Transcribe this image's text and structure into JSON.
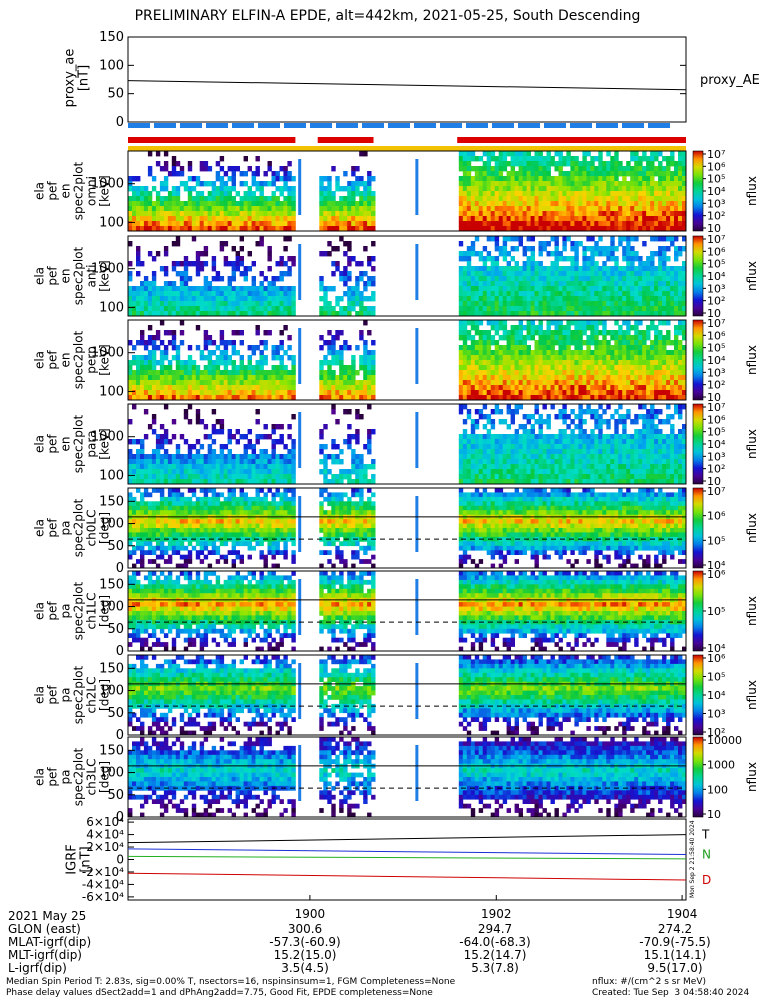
{
  "title": "PRELIMINARY ELFIN-A EPDE, alt=442km, 2021-05-25, South Descending",
  "colors": {
    "frame": "#000000",
    "red_bar": "#dd0000",
    "blue_bar": "#1e7ee6",
    "yellow_bar": "#f2c200",
    "igrf_t": "#000000",
    "igrf_n": "#1a2fd6",
    "igrf_nlabel": "#1e9e1e",
    "igrf_d": "#d00000",
    "igrf_green": "#20b020"
  },
  "chart_data": [
    {
      "type": "line",
      "name": "proxy_ae",
      "ylabel_lines": [
        "proxy_ae",
        "[nT]"
      ],
      "ylim": [
        0,
        150
      ],
      "yticks": [
        "0",
        "50",
        "100",
        "150"
      ],
      "series": [
        {
          "name": "proxy_AE",
          "x": [
            0,
            1
          ],
          "y": [
            73,
            57
          ]
        }
      ]
    },
    {
      "type": "heatmap",
      "name": "status_bars",
      "rows": [
        {
          "color": "blue_bar",
          "segments": [
            [
              0,
              1
            ]
          ],
          "dashed": true
        },
        {
          "color": "red_bar",
          "segments": [
            [
              0,
              0.3
            ],
            [
              0.34,
              0.44
            ],
            [
              0.59,
              1.0
            ]
          ]
        },
        {
          "color": "yellow_bar",
          "segments": [
            [
              0,
              1
            ]
          ]
        }
      ]
    },
    {
      "type": "heatmap",
      "ylabel_lines": [
        "ela",
        "pef",
        "en",
        "spec2plot",
        "omni",
        "[keV]"
      ],
      "yticks": [
        "100",
        "1000"
      ],
      "ylog": true,
      "ylim": [
        60,
        7000
      ],
      "colorbar": {
        "label": "nflux",
        "ticks": [
          "10",
          "10²",
          "10³",
          "10⁴",
          "10⁵",
          "10⁶",
          "10⁷"
        ],
        "log_range": [
          1,
          7
        ]
      }
    },
    {
      "type": "heatmap",
      "ylabel_lines": [
        "ela",
        "pef",
        "en",
        "spec2plot",
        "anti",
        "[keV]"
      ],
      "yticks": [
        "100",
        "1000"
      ],
      "ylog": true,
      "ylim": [
        60,
        7000
      ],
      "colorbar": {
        "label": "nflux",
        "ticks": [
          "10",
          "10²",
          "10³",
          "10⁴",
          "10⁵",
          "10⁶",
          "10⁷"
        ],
        "log_range": [
          1,
          7
        ]
      }
    },
    {
      "type": "heatmap",
      "ylabel_lines": [
        "ela",
        "pef",
        "en",
        "spec2plot",
        "perp",
        "[keV]"
      ],
      "yticks": [
        "100",
        "1000"
      ],
      "ylog": true,
      "ylim": [
        60,
        7000
      ],
      "colorbar": {
        "label": "nflux",
        "ticks": [
          "10",
          "10²",
          "10³",
          "10⁴",
          "10⁵",
          "10⁶",
          "10⁷"
        ],
        "log_range": [
          1,
          7
        ]
      }
    },
    {
      "type": "heatmap",
      "ylabel_lines": [
        "ela",
        "pef",
        "en",
        "spec2plot",
        "para",
        "[keV]"
      ],
      "yticks": [
        "100",
        "1000"
      ],
      "ylog": true,
      "ylim": [
        60,
        7000
      ],
      "colorbar": {
        "label": "nflux",
        "ticks": [
          "10",
          "10²",
          "10³",
          "10⁴",
          "10⁵",
          "10⁶",
          "10⁷"
        ],
        "log_range": [
          1,
          7
        ]
      }
    },
    {
      "type": "heatmap",
      "ylabel_lines": [
        "ela",
        "pef",
        "pa",
        "spec2plot",
        "ch0LC",
        "[deg]"
      ],
      "yticks": [
        "0",
        "50",
        "100",
        "150"
      ],
      "ylim": [
        0,
        180
      ],
      "hlines": [
        115,
        65
      ],
      "colorbar": {
        "label": "nflux",
        "ticks": [
          "10⁴",
          "10⁵",
          "10⁶",
          "10⁷"
        ],
        "log_range": [
          3.6,
          7
        ]
      }
    },
    {
      "type": "heatmap",
      "ylabel_lines": [
        "ela",
        "pef",
        "pa",
        "spec2plot",
        "ch1LC",
        "[deg]"
      ],
      "yticks": [
        "0",
        "50",
        "100",
        "150"
      ],
      "ylim": [
        0,
        180
      ],
      "hlines": [
        115,
        65
      ],
      "colorbar": {
        "label": "nflux",
        "ticks": [
          "10⁴",
          "10⁵",
          "10⁶"
        ],
        "log_range": [
          3.5,
          6.6
        ]
      }
    },
    {
      "type": "heatmap",
      "ylabel_lines": [
        "ela",
        "pef",
        "pa",
        "spec2plot",
        "ch2LC",
        "[deg]"
      ],
      "yticks": [
        "0",
        "50",
        "100",
        "150"
      ],
      "ylim": [
        0,
        180
      ],
      "hlines": [
        115,
        65
      ],
      "colorbar": {
        "label": "nflux",
        "ticks": [
          "10²",
          "10³",
          "10⁴",
          "10⁵",
          "10⁶"
        ],
        "log_range": [
          2,
          6.4
        ]
      }
    },
    {
      "type": "heatmap",
      "ylabel_lines": [
        "ela",
        "pef",
        "pa",
        "spec2plot",
        "ch3LC",
        "[deg]"
      ],
      "yticks": [
        "0",
        "50",
        "100",
        "150"
      ],
      "ylim": [
        0,
        180
      ],
      "hlines": [
        115,
        65
      ],
      "colorbar": {
        "label": "nflux",
        "ticks": [
          "10",
          "100",
          "1000",
          "10000"
        ],
        "log_range": [
          1,
          4.2
        ]
      }
    },
    {
      "type": "line",
      "name": "igrf",
      "ylabel_lines": [
        "IGRF",
        "[nT]"
      ],
      "ylim": [
        -65000,
        65000
      ],
      "yticks": [
        "-6×10⁴",
        "-4×10⁴",
        "-2×10⁴",
        "0",
        "2×10⁴",
        "4×10⁴",
        "6×10⁴"
      ],
      "series": [
        {
          "name": "T",
          "color": "igrf_t",
          "x": [
            0,
            1
          ],
          "y": [
            27000,
            40000
          ]
        },
        {
          "name": "N",
          "color": "igrf_n",
          "x": [
            0,
            1
          ],
          "y": [
            17000,
            8000
          ]
        },
        {
          "name": "",
          "color": "igrf_green",
          "x": [
            0,
            1
          ],
          "y": [
            5000,
            1000
          ]
        },
        {
          "name": "D",
          "color": "igrf_d",
          "x": [
            0,
            1
          ],
          "y": [
            -22000,
            -33000
          ]
        }
      ]
    }
  ],
  "x_axis": {
    "ticks": [
      "1900",
      "1902",
      "1904"
    ],
    "xlim": [
      "18:58:00",
      "19:04:00"
    ]
  },
  "stamp": "Mon Sep  2 21:58:40 2024",
  "footer": {
    "date": "2021 May 25",
    "rows": [
      {
        "label": "GLON (east)",
        "values": [
          "300.6",
          "294.7",
          "274.2"
        ]
      },
      {
        "label": "MLAT-igrf(dip)",
        "values": [
          "-57.3(-60.9)",
          "-64.0(-68.3)",
          "-70.9(-75.5)"
        ]
      },
      {
        "label": "MLT-igrf(dip)",
        "values": [
          "15.2(15.0)",
          "15.2(14.7)",
          "15.1(14.1)"
        ]
      },
      {
        "label": "L-igrf(dip)",
        "values": [
          "3.5(4.5)",
          "5.3(7.8)",
          "9.5(17.0)"
        ]
      }
    ],
    "note1": "Median Spin Period T: 2.83s, sig=0.00% T, nsectors=16, nspinsinsum=1, FGM Completeness=None",
    "note2": "Phase delay values dSect2add=1 and dPhAng2add=7.75, Good Fit, EPDE completeness=None",
    "units": "nflux: #/(cm^2 s sr MeV)",
    "created": "Created: Tue Sep  3 04:58:40 2024"
  }
}
